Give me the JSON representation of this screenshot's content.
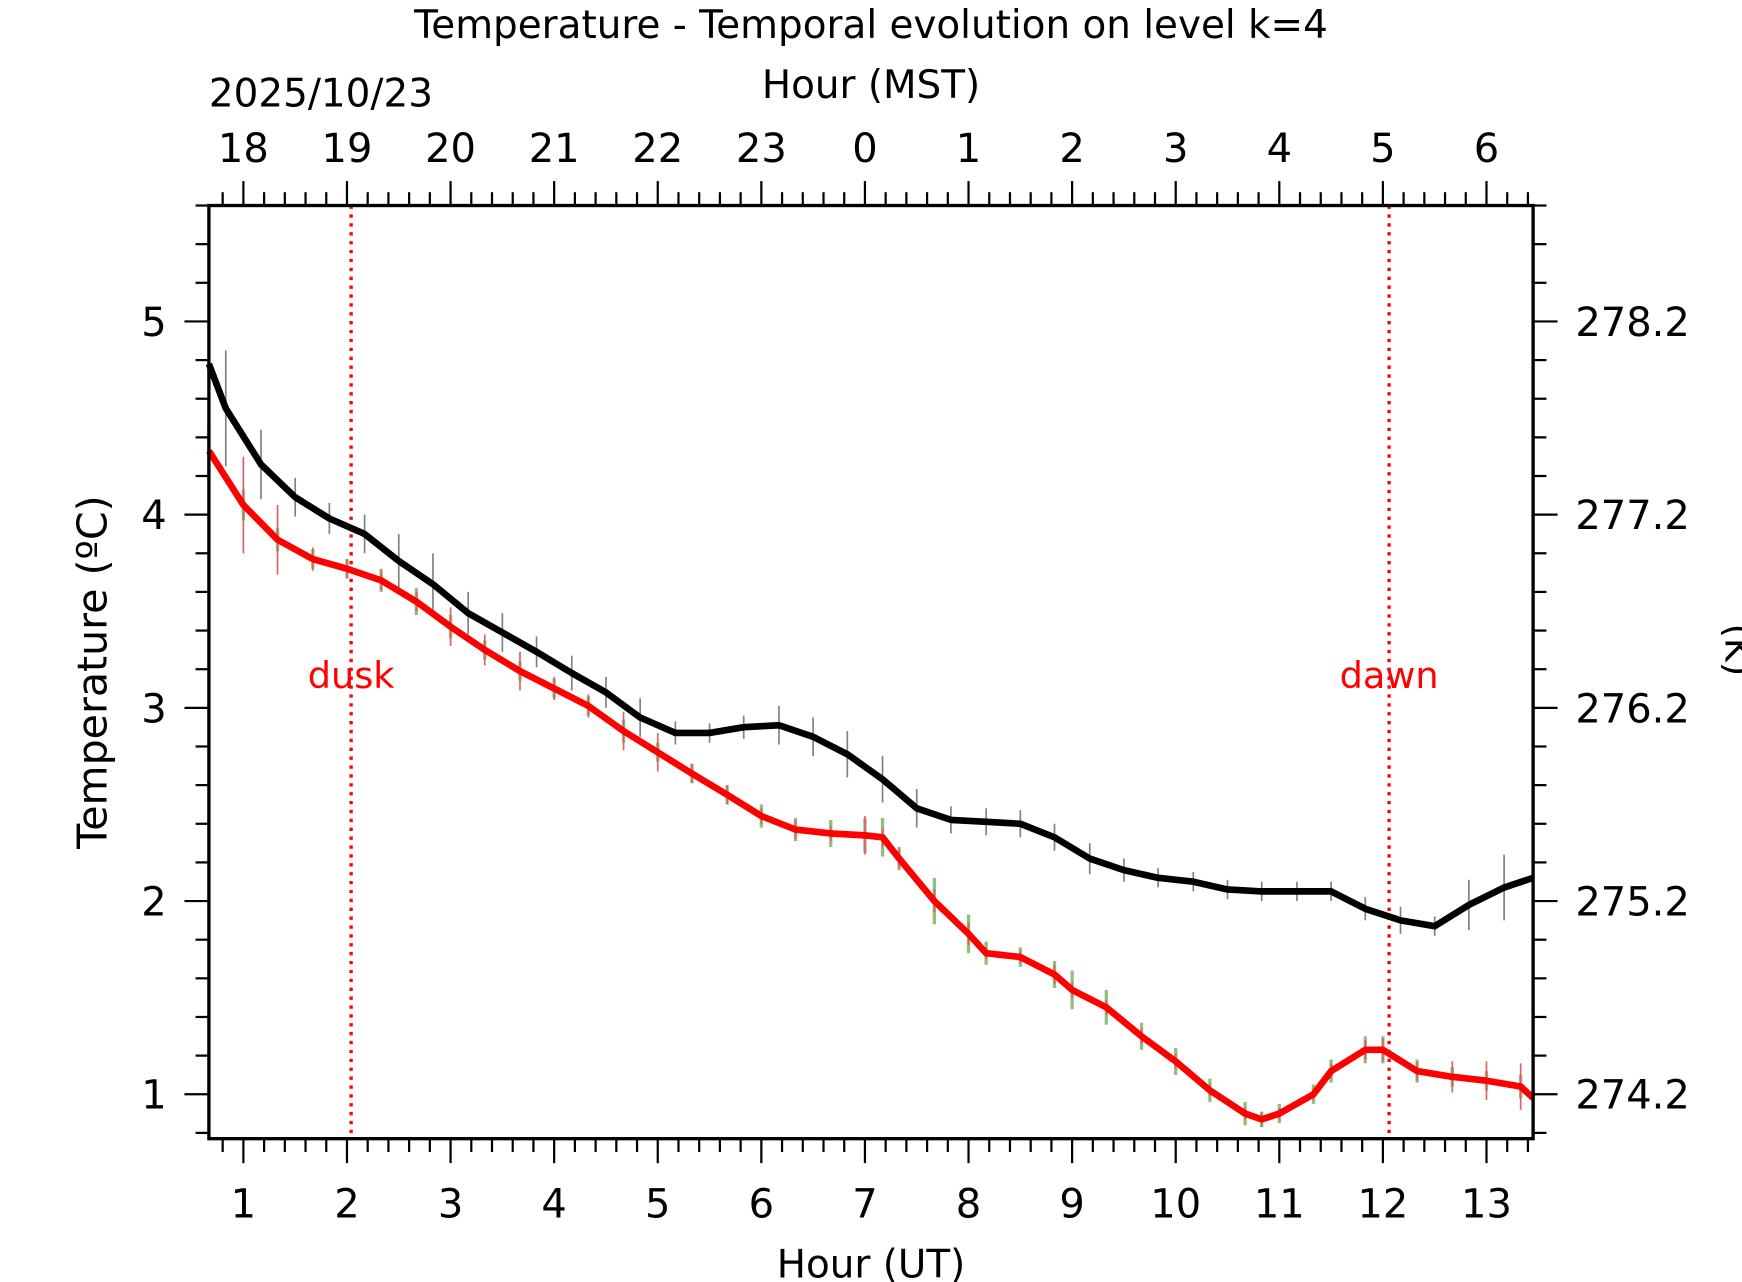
{
  "chart_data": {
    "type": "line",
    "title": "Temperature - Temporal evolution on level k=4",
    "xlabel": "Hour (UT)",
    "xlabel_top": "Hour (MST)",
    "date_label": "2025/10/23",
    "ylabel": "Temperature (ºC)",
    "ylabel_right": "(K)",
    "xlim": [
      0.667,
      13.45
    ],
    "ylim": [
      0.77,
      5.6
    ],
    "x_ticks": [
      "1",
      "2",
      "3",
      "4",
      "5",
      "6",
      "7",
      "8",
      "9",
      "10",
      "11",
      "12",
      "13"
    ],
    "x_tick_values": [
      1,
      2,
      3,
      4,
      5,
      6,
      7,
      8,
      9,
      10,
      11,
      12,
      13
    ],
    "top_ticks": [
      "18",
      "19",
      "20",
      "21",
      "22",
      "23",
      "0",
      "1",
      "2",
      "3",
      "4",
      "5",
      "6"
    ],
    "y_ticks": [
      "1",
      "2",
      "3",
      "4",
      "5"
    ],
    "y_tick_values": [
      1,
      2,
      3,
      4,
      5
    ],
    "right_ticks": [
      "274.2",
      "275.2",
      "276.2",
      "277.2",
      "278.2"
    ],
    "annotations": [
      {
        "text": "dusk",
        "x": 2.04,
        "y": 3.2,
        "color": "#ff0000"
      },
      {
        "text": "dawn",
        "x": 12.06,
        "y": 3.2,
        "color": "#ff0000"
      }
    ],
    "series": [
      {
        "name": "black",
        "color": "#000000",
        "errcolor": "#808080",
        "x": [
          0.667,
          0.83,
          1.17,
          1.5,
          1.83,
          2.17,
          2.5,
          2.83,
          3.17,
          3.5,
          3.83,
          4.17,
          4.5,
          4.83,
          5.17,
          5.5,
          5.83,
          6.17,
          6.5,
          6.83,
          7.17,
          7.5,
          7.83,
          8.17,
          8.5,
          8.83,
          9.17,
          9.5,
          9.83,
          10.17,
          10.5,
          10.83,
          11.17,
          11.5,
          11.83,
          12.17,
          12.5,
          12.83,
          13.17,
          13.45
        ],
        "y": [
          4.78,
          4.55,
          4.26,
          4.09,
          3.98,
          3.9,
          3.76,
          3.64,
          3.49,
          3.39,
          3.29,
          3.18,
          3.08,
          2.95,
          2.87,
          2.87,
          2.9,
          2.91,
          2.85,
          2.76,
          2.63,
          2.48,
          2.42,
          2.41,
          2.4,
          2.33,
          2.22,
          2.16,
          2.12,
          2.1,
          2.06,
          2.05,
          2.05,
          2.05,
          1.96,
          1.9,
          1.87,
          1.98,
          2.07,
          2.12
        ],
        "err": [
          0,
          0.3,
          0.18,
          0.1,
          0.08,
          0.1,
          0.14,
          0.16,
          0.11,
          0.1,
          0.08,
          0.09,
          0.08,
          0.1,
          0.06,
          0.05,
          0.06,
          0.1,
          0.1,
          0.12,
          0.12,
          0.1,
          0.07,
          0.07,
          0.07,
          0.07,
          0.08,
          0.06,
          0.05,
          0.05,
          0.05,
          0.05,
          0.05,
          0.05,
          0.06,
          0.07,
          0.05,
          0.13,
          0.17,
          0
        ]
      },
      {
        "name": "green",
        "color": "#008000",
        "errcolor": "#90c080",
        "x": [
          0.667,
          1,
          1.33,
          1.67,
          2,
          2.33,
          2.67,
          3,
          3.33,
          3.67,
          4,
          4.33,
          4.67,
          5,
          5.33,
          5.67,
          6,
          6.33,
          6.67,
          7,
          7.17,
          7.33,
          7.67,
          8,
          8.17,
          8.5,
          8.83,
          9,
          9.33,
          9.67,
          10,
          10.33,
          10.67,
          10.83,
          11,
          11.33,
          11.5,
          11.83,
          12,
          12.33,
          12.67,
          13,
          13.33,
          13.45
        ],
        "y": [
          4.33,
          4.05,
          3.87,
          3.77,
          3.72,
          3.66,
          3.55,
          3.42,
          3.3,
          3.19,
          3.1,
          3.01,
          2.88,
          2.77,
          2.66,
          2.55,
          2.44,
          2.37,
          2.35,
          2.34,
          2.33,
          2.22,
          2.0,
          1.83,
          1.73,
          1.71,
          1.62,
          1.54,
          1.45,
          1.3,
          1.17,
          1.02,
          0.9,
          0.87,
          0.9,
          1.0,
          1.12,
          1.23,
          1.23,
          1.12,
          1.09,
          1.07,
          1.04,
          0.98
        ],
        "err": [
          0.15,
          0.08,
          0.06,
          0.05,
          0.05,
          0.06,
          0.07,
          0.06,
          0.05,
          0.05,
          0.05,
          0.05,
          0.06,
          0.05,
          0.05,
          0.05,
          0.06,
          0.06,
          0.07,
          0.09,
          0.1,
          0.06,
          0.12,
          0.1,
          0.06,
          0.05,
          0.07,
          0.1,
          0.09,
          0.07,
          0.07,
          0.06,
          0.06,
          0.04,
          0.05,
          0.05,
          0.06,
          0.07,
          0.07,
          0.06,
          0.05,
          0.05,
          0.06,
          0.05
        ]
      },
      {
        "name": "red",
        "color": "#ff0000",
        "errcolor": "#e06060",
        "x": [
          0.667,
          1,
          1.33,
          1.67,
          2,
          2.33,
          2.67,
          3,
          3.33,
          3.67,
          4,
          4.33,
          4.67,
          5,
          5.33,
          5.67,
          6,
          6.33,
          6.67,
          7,
          7.17,
          7.33,
          7.67,
          8,
          8.17,
          8.5,
          8.83,
          9,
          9.33,
          9.67,
          10,
          10.33,
          10.67,
          10.83,
          11,
          11.33,
          11.5,
          11.83,
          12,
          12.33,
          12.67,
          13,
          13.33,
          13.45
        ],
        "y": [
          4.33,
          4.05,
          3.87,
          3.77,
          3.72,
          3.66,
          3.55,
          3.42,
          3.3,
          3.19,
          3.1,
          3.01,
          2.88,
          2.77,
          2.66,
          2.55,
          2.44,
          2.37,
          2.35,
          2.34,
          2.33,
          2.22,
          2.0,
          1.83,
          1.73,
          1.71,
          1.62,
          1.54,
          1.45,
          1.3,
          1.17,
          1.02,
          0.9,
          0.87,
          0.9,
          1.0,
          1.12,
          1.23,
          1.23,
          1.12,
          1.09,
          1.07,
          1.04,
          0.98
        ],
        "err": [
          0,
          0.25,
          0.18,
          0.06,
          0.05,
          0.05,
          0.05,
          0.1,
          0.08,
          0.1,
          0.06,
          0.06,
          0.1,
          0.1,
          0.05,
          0.05,
          0.04,
          0.05,
          0.04,
          0.1,
          0.05,
          0.05,
          0.06,
          0.06,
          0.03,
          0.03,
          0.05,
          0.04,
          0.04,
          0.04,
          0.04,
          0.03,
          0.03,
          0.04,
          0.03,
          0.03,
          0.04,
          0.05,
          0.06,
          0.05,
          0.08,
          0.1,
          0.12,
          0
        ]
      }
    ]
  }
}
